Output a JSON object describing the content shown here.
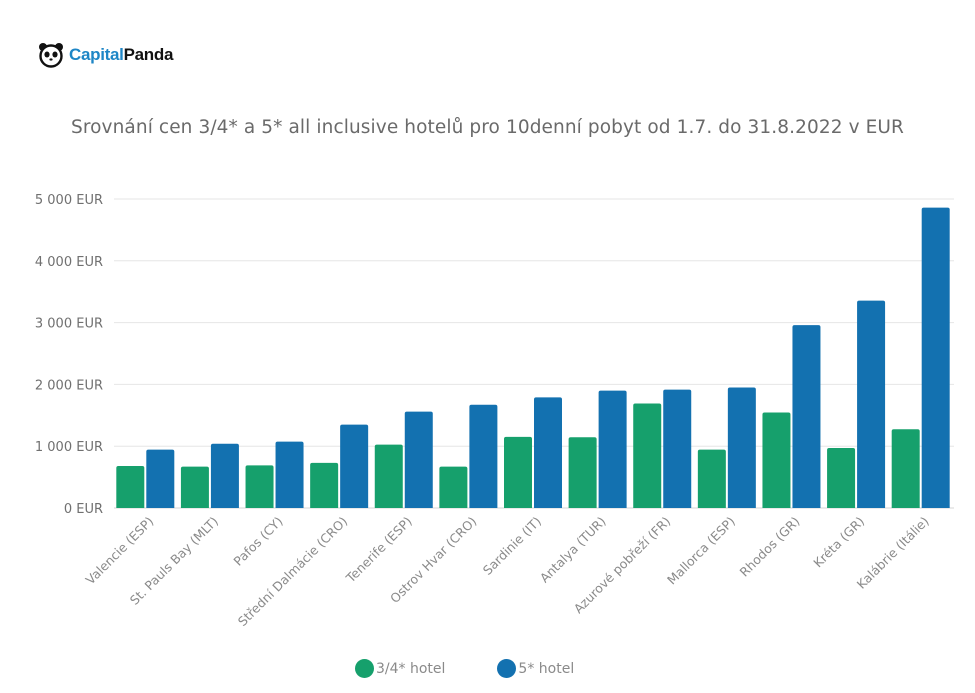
{
  "brand": {
    "capital": "Capital",
    "panda": "Panda"
  },
  "colors": {
    "series_3_4": "#16a06c",
    "series_5": "#1371b0",
    "grid": "#e6e6e6",
    "brand_blue": "#1e86c6"
  },
  "chart_data": {
    "type": "bar",
    "title": "Srovnání cen 3/4* a 5* all inclusive hotelů pro 10denní pobyt od 1.7. do 31.8.2022 v EUR",
    "xlabel": "",
    "ylabel": "",
    "ylim": [
      0,
      5000
    ],
    "yticks": [
      0,
      1000,
      2000,
      3000,
      4000,
      5000
    ],
    "ytick_labels": [
      "0 EUR",
      "1 000 EUR",
      "2 000 EUR",
      "3 000 EUR",
      "4 000 EUR",
      "5 000 EUR"
    ],
    "grid": true,
    "legend_position": "bottom",
    "categories": [
      "Valencie (ESP)",
      "St. Pauls Bay (MLT)",
      "Pafos (CY)",
      "Střední Dalmácie (CRO)",
      "Tenerife (ESP)",
      "Ostrov Hvar (CRO)",
      "Sardinie (IT)",
      "Antalya (TUR)",
      "Azurové pobřeží (FR)",
      "Mallorca (ESP)",
      "Rhodos (GR)",
      "Kréta (GR)",
      "Kalábrie (Itálie)"
    ],
    "series": [
      {
        "name": "3/4* hotel",
        "color": "#16a06c",
        "values": [
          680,
          670,
          690,
          730,
          1025,
          670,
          1150,
          1145,
          1690,
          945,
          1545,
          970,
          1275
        ]
      },
      {
        "name": "5* hotel",
        "color": "#1371b0",
        "values": [
          945,
          1040,
          1075,
          1350,
          1560,
          1670,
          1790,
          1900,
          1915,
          1950,
          2960,
          3355,
          4860
        ]
      }
    ]
  }
}
